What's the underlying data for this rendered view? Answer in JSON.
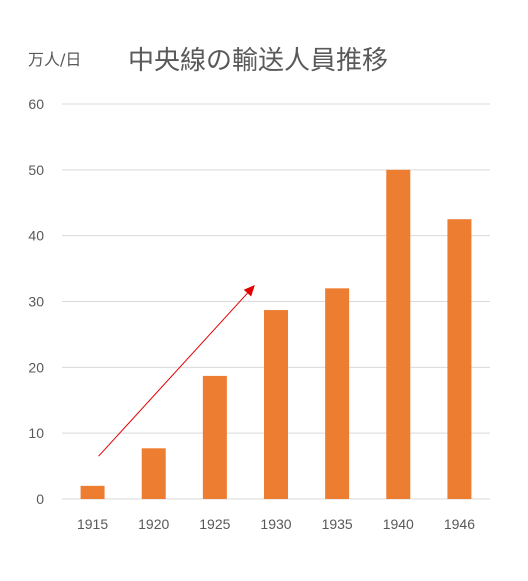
{
  "chart_data": {
    "type": "bar",
    "title": "中央線の輸送人員推移",
    "unit_label": "万人/日",
    "xlabel": "",
    "ylabel": "",
    "categories": [
      "1915",
      "1920",
      "1925",
      "1930",
      "1935",
      "1940",
      "1946"
    ],
    "values": [
      2,
      7.7,
      18.7,
      28.7,
      32,
      50,
      42.5
    ],
    "ylim": [
      0,
      60
    ],
    "yticks": [
      0,
      10,
      20,
      30,
      40,
      50,
      60
    ],
    "grid": true,
    "bar_color": "#ED7D31",
    "gridline_color": "#D9D9D9",
    "text_color": "#595959",
    "annotation": {
      "type": "trend-arrow",
      "color": "#E00000",
      "from": {
        "category": "1915",
        "value": 6.5
      },
      "to": {
        "category": "1925",
        "value": 32.5
      }
    }
  }
}
